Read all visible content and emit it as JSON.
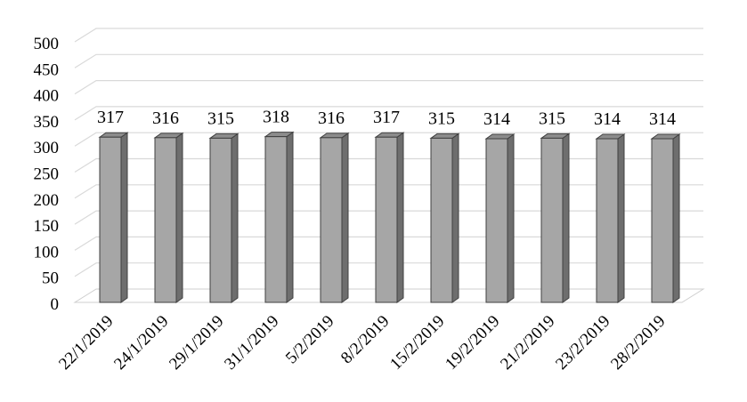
{
  "chart_data": {
    "type": "bar",
    "style": "3d-column",
    "title": "",
    "xlabel": "",
    "ylabel": "",
    "categories": [
      "22/1/2019",
      "24/1/2019",
      "29/1/2019",
      "31/1/2019",
      "5/2/2019",
      "8/2/2019",
      "15/2/2019",
      "19/2/2019",
      "21/2/2019",
      "23/2/2019",
      "28/2/2019"
    ],
    "values": [
      317,
      316,
      315,
      318,
      316,
      317,
      315,
      314,
      315,
      314,
      314
    ],
    "data_labels": [
      "317",
      "316",
      "315",
      "318",
      "316",
      "317",
      "315",
      "314",
      "315",
      "314",
      "314"
    ],
    "ylim": [
      0,
      500
    ],
    "yticks": [
      "0",
      "50",
      "100",
      "150",
      "200",
      "250",
      "300",
      "350",
      "400",
      "450",
      "500"
    ],
    "grid": true,
    "legend": "none",
    "colors": {
      "bar_front": "#a6a6a6",
      "bar_side": "#6e6e6e",
      "bar_top": "#8c8c8c",
      "bar_edge": "#404040",
      "grid": "#d9d9d9",
      "floor": "#cfcfcf"
    }
  }
}
